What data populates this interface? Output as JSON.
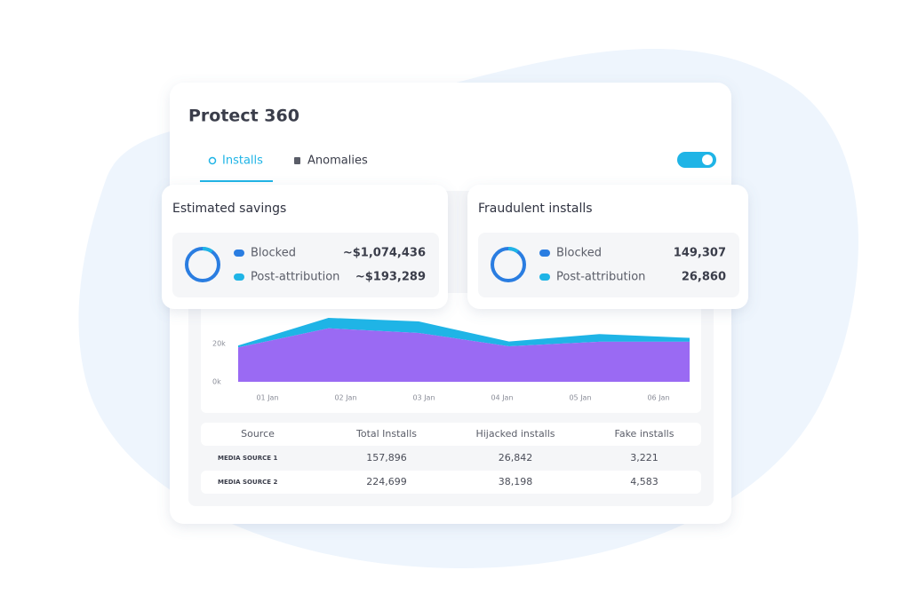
{
  "header": {
    "title": "Protect 360"
  },
  "tabs": [
    {
      "label": "Installs"
    },
    {
      "label": "Anomalies"
    }
  ],
  "cards": [
    {
      "title": "Estimated savings",
      "rows": [
        {
          "label": "Blocked",
          "value": "~$1,074,436"
        },
        {
          "label": "Post-attribution",
          "value": "~$193,289"
        }
      ]
    },
    {
      "title": "Fraudulent installs",
      "rows": [
        {
          "label": "Blocked",
          "value": "149,307"
        },
        {
          "label": "Post-attribution",
          "value": "26,860"
        }
      ]
    }
  ],
  "chart": {
    "type": "area",
    "stacked": true,
    "categories": [
      "01 Jan",
      "02 Jan",
      "03 Jan",
      "04 Jan",
      "05 Jan",
      "06 Jan"
    ],
    "series": [
      {
        "color": "#9a6af3",
        "values": [
          18000,
          28000,
          25600,
          18600,
          21000,
          21000
        ]
      },
      {
        "color": "#1fb4e6",
        "values": [
          1000,
          5500,
          6000,
          2500,
          4000,
          2000
        ]
      }
    ],
    "ylim": [
      0,
      40000
    ],
    "yticks": [
      {
        "value": 0,
        "label": "0k"
      },
      {
        "value": 20000,
        "label": "20k"
      }
    ]
  },
  "table": {
    "header": [
      "Source",
      "Total Installs",
      "Hijacked installs",
      "Fake installs"
    ],
    "rows": [
      [
        "MEDIA SOURCE 1",
        "157,896",
        "26,842",
        "3,221"
      ],
      [
        "MEDIA SOURCE 2",
        "224,699",
        "38,198",
        "4,583"
      ]
    ]
  }
}
